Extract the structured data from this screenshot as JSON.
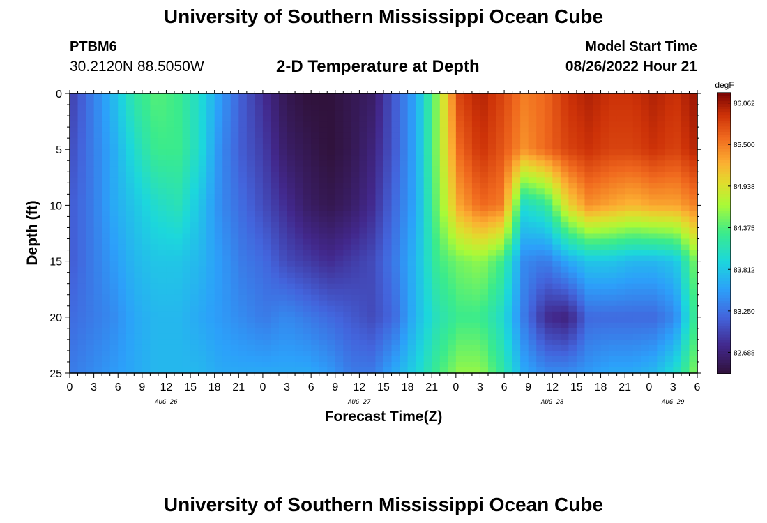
{
  "header": {
    "title": "University of Southern Mississippi Ocean Cube",
    "station": "PTBM6",
    "coordinates": "30.2120N  88.5050W",
    "subtitle": "2-D Temperature at Depth",
    "model_start_label": "Model Start Time",
    "model_start_value": "08/26/2022 Hour 21"
  },
  "footer": {
    "title": "University of Southern Mississippi Ocean Cube"
  },
  "chart_data": {
    "type": "heatmap",
    "xlabel": "Forecast Time(Z)",
    "ylabel": "Depth (ft)",
    "x_hours_since_start": [
      0,
      78
    ],
    "x_tick_labels": [
      "0",
      "3",
      "6",
      "9",
      "12",
      "15",
      "18",
      "21",
      "0",
      "3",
      "6",
      "9",
      "12",
      "15",
      "18",
      "21",
      "0",
      "3",
      "6",
      "9",
      "12",
      "15",
      "18",
      "21",
      "0",
      "3",
      "6"
    ],
    "date_labels": [
      {
        "label": "AUG 26",
        "hour": 12
      },
      {
        "label": "AUG 27",
        "hour": 36
      },
      {
        "label": "AUG 28",
        "hour": 60
      },
      {
        "label": "AUG 29",
        "hour": 75
      }
    ],
    "y_range": [
      0,
      25
    ],
    "y_ticks": [
      0,
      5,
      10,
      15,
      20,
      25
    ],
    "colorbar": {
      "unit": "degF",
      "min": 82.4,
      "max": 86.2,
      "tick_labels": [
        "86.062",
        "85.500",
        "84.938",
        "84.375",
        "83.812",
        "83.250",
        "82.688"
      ],
      "tick_values": [
        86.062,
        85.5,
        84.938,
        84.375,
        83.812,
        83.25,
        82.688
      ]
    },
    "depth_levels_ft": [
      0,
      5,
      10,
      15,
      20,
      25
    ],
    "temperature_rows": [
      [
        82.9,
        83.3,
        83.7,
        84.2,
        84.4,
        84.3,
        84.0,
        83.5,
        83.1,
        82.8,
        82.5,
        82.4,
        82.4,
        82.5,
        82.6,
        83.1,
        83.6,
        84.6,
        85.8,
        86.0,
        85.8,
        85.5,
        85.6,
        85.9,
        86.0,
        85.9,
        85.9,
        86.0,
        85.9,
        86.1
      ],
      [
        83.0,
        83.3,
        83.6,
        84.0,
        84.3,
        84.3,
        84.0,
        83.4,
        83.1,
        82.9,
        82.6,
        82.5,
        82.4,
        82.5,
        82.7,
        83.1,
        83.6,
        84.6,
        85.6,
        85.9,
        85.7,
        85.4,
        85.6,
        85.8,
        85.9,
        85.8,
        85.8,
        85.9,
        85.8,
        86.0
      ],
      [
        83.1,
        83.3,
        83.6,
        83.8,
        84.0,
        84.1,
        83.8,
        83.4,
        83.2,
        83.0,
        82.8,
        82.6,
        82.5,
        82.6,
        82.8,
        83.2,
        83.6,
        84.5,
        85.3,
        85.6,
        85.5,
        84.0,
        84.2,
        85.0,
        85.4,
        85.3,
        85.2,
        85.3,
        85.3,
        85.5
      ],
      [
        83.1,
        83.3,
        83.5,
        83.7,
        83.8,
        83.8,
        83.7,
        83.5,
        83.3,
        83.2,
        83.0,
        82.9,
        82.8,
        82.9,
        83.0,
        83.3,
        83.7,
        84.3,
        84.5,
        84.6,
        84.3,
        83.4,
        83.3,
        83.6,
        83.8,
        83.8,
        83.7,
        83.7,
        83.8,
        84.6
      ],
      [
        83.2,
        83.3,
        83.4,
        83.6,
        83.7,
        83.7,
        83.6,
        83.5,
        83.4,
        83.3,
        83.4,
        83.3,
        83.2,
        83.1,
        83.0,
        83.2,
        83.7,
        84.1,
        84.3,
        84.3,
        84.0,
        83.3,
        82.8,
        82.7,
        83.2,
        83.2,
        83.2,
        83.2,
        83.4,
        84.4
      ],
      [
        83.3,
        83.4,
        83.5,
        83.6,
        83.7,
        83.7,
        83.7,
        83.6,
        83.6,
        83.6,
        83.6,
        83.6,
        83.5,
        83.3,
        83.3,
        83.6,
        83.9,
        84.3,
        84.6,
        84.6,
        84.2,
        83.6,
        83.4,
        83.4,
        83.5,
        83.6,
        83.6,
        83.7,
        84.0,
        84.6
      ]
    ]
  }
}
